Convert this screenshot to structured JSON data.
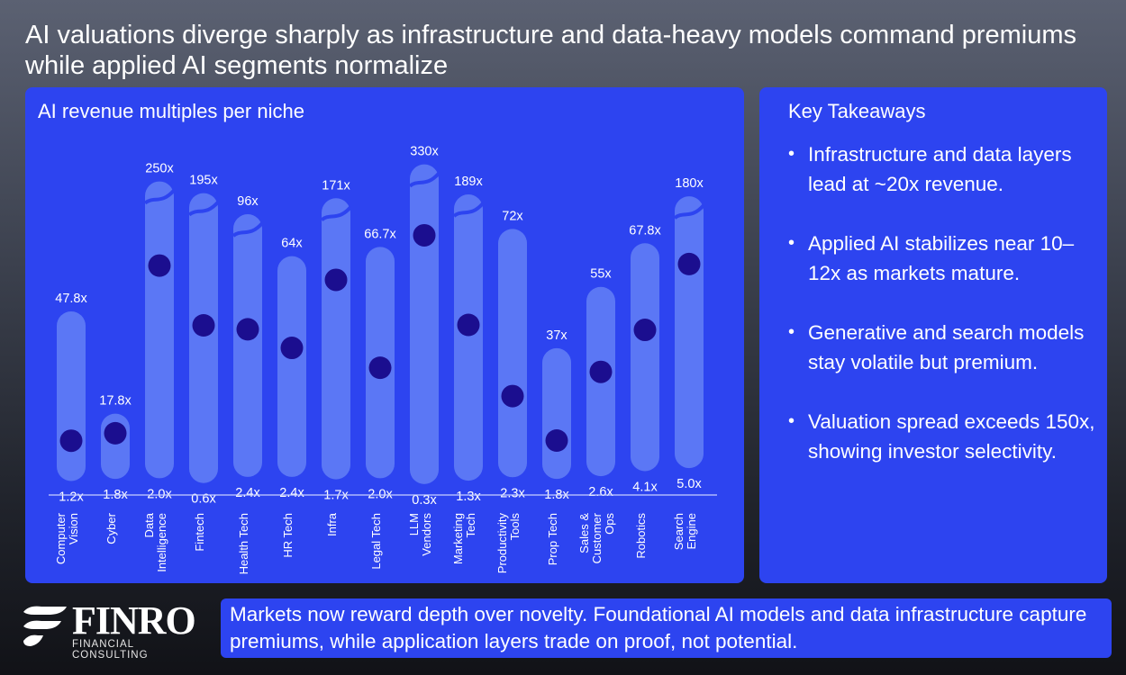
{
  "headline": "AI valuations diverge sharply as infrastructure and data-heavy models command premiums while applied AI segments normalize",
  "chart_title": "AI revenue multiples per niche",
  "colors": {
    "panel": "#2d44f0",
    "bar": "#5b77f5",
    "dot": "#1b0e8f",
    "baseline": "#c8d0ff"
  },
  "chart_data": {
    "type": "range",
    "title": "AI revenue multiples per niche",
    "categories": [
      {
        "label": [
          "Computer",
          "Vision"
        ],
        "low": 1.2,
        "high": 47.8,
        "low_label": "1.2x",
        "high_label": "47.8x",
        "median": 1.2,
        "broken": false
      },
      {
        "label": [
          "Cyber"
        ],
        "low": 1.8,
        "high": 17.8,
        "low_label": "1.8x",
        "high_label": "17.8x",
        "median": 7.0,
        "broken": false
      },
      {
        "label": [
          "Data",
          "Intelligence"
        ],
        "low": 2.0,
        "high": 250,
        "low_label": "2.0x",
        "high_label": "250x",
        "median": 27,
        "broken": true
      },
      {
        "label": [
          "Fintech"
        ],
        "low": 0.6,
        "high": 195,
        "low_label": "0.6x",
        "high_label": "195x",
        "median": 11,
        "broken": true
      },
      {
        "label": [
          "Health Tech"
        ],
        "low": 2.4,
        "high": 96,
        "low_label": "2.4x",
        "high_label": "96x",
        "median": 12,
        "broken": true
      },
      {
        "label": [
          "HR Tech"
        ],
        "low": 2.4,
        "high": 64,
        "low_label": "2.4x",
        "high_label": "64x",
        "median": 12,
        "broken": false
      },
      {
        "label": [
          "Infra"
        ],
        "low": 1.7,
        "high": 171,
        "low_label": "1.7x",
        "high_label": "171x",
        "median": 26,
        "broken": true
      },
      {
        "label": [
          "Legal Tech"
        ],
        "low": 2.0,
        "high": 66.7,
        "low_label": "2.0x",
        "high_label": "66.7x",
        "median": 7,
        "broken": false
      },
      {
        "label": [
          "LLM",
          "Vendors"
        ],
        "low": 0.3,
        "high": 330,
        "low_label": "0.3x",
        "high_label": "330x",
        "median": 37,
        "broken": true
      },
      {
        "label": [
          "Marketing",
          "Tech"
        ],
        "low": 1.3,
        "high": 189,
        "low_label": "1.3x",
        "high_label": "189x",
        "median": 11,
        "broken": true
      },
      {
        "label": [
          "Productivity",
          "Tools"
        ],
        "low": 2.3,
        "high": 72,
        "low_label": "2.3x",
        "high_label": "72x",
        "median": 3,
        "broken": false
      },
      {
        "label": [
          "Prop Tech"
        ],
        "low": 1.8,
        "high": 37,
        "low_label": "1.8x",
        "high_label": "37x",
        "median": 1.5,
        "broken": false
      },
      {
        "label": [
          "Sales &",
          "Customer",
          "Ops"
        ],
        "low": 2.6,
        "high": 55,
        "low_label": "2.6x",
        "high_label": "55x",
        "median": 9,
        "broken": false
      },
      {
        "label": [
          "Robotics"
        ],
        "low": 4.1,
        "high": 67.8,
        "low_label": "4.1x",
        "high_label": "67.8x",
        "median": 15,
        "broken": false
      },
      {
        "label": [
          "Search",
          "Engine"
        ],
        "low": 5.0,
        "high": 180,
        "low_label": "5.0x",
        "high_label": "180x",
        "median": 32,
        "broken": true
      }
    ]
  },
  "takeaways": {
    "title": "Key Takeaways",
    "items": [
      "Infrastructure and data layers lead at ~20x revenue.",
      "Applied AI stabilizes near 10–12x as markets mature.",
      "Generative and search models stay volatile but premium.",
      "Valuation spread exceeds 150x, showing investor selectivity."
    ]
  },
  "logo": {
    "word": "FINRO",
    "sub": "FINANCIAL CONSULTING"
  },
  "banner": "Markets now reward depth over novelty. Foundational AI models and data infrastructure capture premiums, while application layers trade on proof, not potential."
}
